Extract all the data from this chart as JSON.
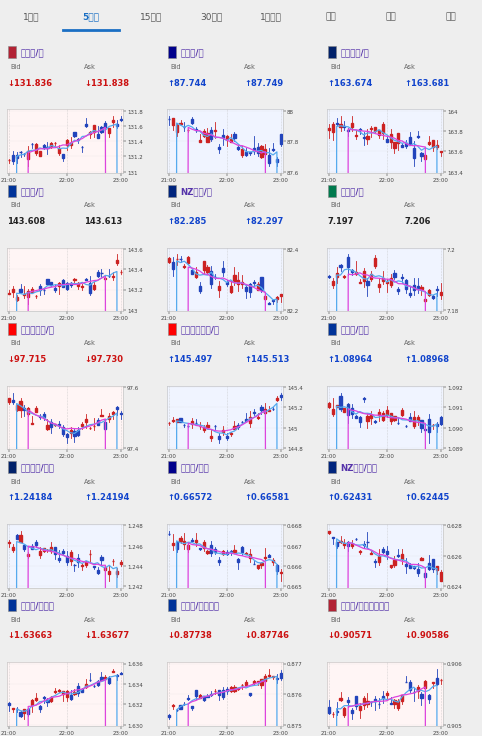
{
  "tab_labels": [
    "1分足",
    "5分足",
    "15分足",
    "30分足",
    "1時間足",
    "日足",
    "週足",
    "月足"
  ],
  "active_tab": 1,
  "tab_active_color": "#1a6fc4",
  "tab_inactive_color": "#555555",
  "pairs": [
    {
      "name": "米ドル/円",
      "flag": "US",
      "bid": "↓131.836",
      "ask": "↓131.838",
      "bid_up": false,
      "ask_up": false,
      "bg": "#fff5f5",
      "border": "#e8c0c0",
      "y_ticks": [
        "131",
        "131.2",
        "131.4",
        "131.6",
        "131.8"
      ],
      "trend": "up_overall"
    },
    {
      "name": "豪ドル/円",
      "flag": "AU",
      "bid": "↑87.744",
      "ask": "↑87.749",
      "bid_up": true,
      "ask_up": true,
      "bg": "#f0f4ff",
      "border": "#c0cce8",
      "y_ticks": [
        "87.6",
        "87.8",
        "88"
      ],
      "trend": "down"
    },
    {
      "name": "英ポンド/円",
      "flag": "GB",
      "bid": "↑163.674",
      "ask": "↑163.681",
      "bid_up": true,
      "ask_up": true,
      "bg": "#f0f4ff",
      "border": "#c0cce8",
      "y_ticks": [
        "163.4",
        "163.6",
        "163.8",
        "164"
      ],
      "trend": "down_mid"
    },
    {
      "name": "ユーロ/円",
      "flag": "EU",
      "bid": "143.608",
      "ask": "143.613",
      "bid_up": null,
      "ask_up": null,
      "bg": "#fff5f5",
      "border": "#e8c0c0",
      "y_ticks": [
        "143",
        "143.2",
        "143.4",
        "143.6"
      ],
      "trend": "up_slight"
    },
    {
      "name": "NZドル/円",
      "flag": "NZ",
      "bid": "↑82.285",
      "ask": "↑82.297",
      "bid_up": true,
      "ask_up": true,
      "bg": "#f0f4ff",
      "border": "#c0cce8",
      "y_ticks": [
        "82.2",
        "82.4"
      ],
      "trend": "down"
    },
    {
      "name": "ランド/円",
      "flag": "ZA",
      "bid": "7.197",
      "ask": "7.206",
      "bid_up": null,
      "ask_up": null,
      "bg": "#f0f4ff",
      "border": "#c0cce8",
      "y_ticks": [
        "7.18",
        "7.2"
      ],
      "trend": "down_slight"
    },
    {
      "name": "カナダドル/円",
      "flag": "CA",
      "bid": "↓97.715",
      "ask": "↓97.730",
      "bid_up": false,
      "ask_up": false,
      "bg": "#fff5f5",
      "border": "#e8c0c0",
      "y_ticks": [
        "97.4",
        "97.6"
      ],
      "trend": "down_v"
    },
    {
      "name": "スイスフラン/円",
      "flag": "CH",
      "bid": "↑145.497",
      "ask": "↑145.513",
      "bid_up": true,
      "ask_up": true,
      "bg": "#f0f4ff",
      "border": "#c0cce8",
      "y_ticks": [
        "144.8",
        "145",
        "145.2",
        "145.4"
      ],
      "trend": "up_v"
    },
    {
      "name": "ユーロ/ドル",
      "flag": "EU",
      "bid": "↑1.08964",
      "ask": "↑1.08968",
      "bid_up": true,
      "ask_up": true,
      "bg": "#f0f4ff",
      "border": "#c0cce8",
      "y_ticks": [
        "1.089",
        "1.090",
        "1.091",
        "1.092"
      ],
      "trend": "down_slight"
    },
    {
      "name": "英ポンド/ドル",
      "flag": "GB",
      "bid": "↑1.24184",
      "ask": "↑1.24194",
      "bid_up": true,
      "ask_up": true,
      "bg": "#f0f4ff",
      "border": "#c0cce8",
      "y_ticks": [
        "1.242",
        "1.244",
        "1.246",
        "1.248"
      ],
      "trend": "down"
    },
    {
      "name": "豪ドル/ドル",
      "flag": "AU",
      "bid": "↑0.66572",
      "ask": "↑0.66581",
      "bid_up": true,
      "ask_up": true,
      "bg": "#f0f4ff",
      "border": "#c0cce8",
      "y_ticks": [
        "0.665",
        "0.666",
        "0.667",
        "0.668"
      ],
      "trend": "down"
    },
    {
      "name": "NZドル/ドル",
      "flag": "NZ",
      "bid": "↑0.62431",
      "ask": "↑0.62445",
      "bid_up": true,
      "ask_up": true,
      "bg": "#f0f4ff",
      "border": "#c0cce8",
      "y_ticks": [
        "0.624",
        "0.626",
        "0.628"
      ],
      "trend": "down"
    },
    {
      "name": "ユーロ/豪ドル",
      "flag": "EU",
      "bid": "↓1.63663",
      "ask": "↓1.63677",
      "bid_up": false,
      "ask_up": false,
      "bg": "#fff5f5",
      "border": "#e8c0c0",
      "y_ticks": [
        "1.630",
        "1.632",
        "1.634",
        "1.636"
      ],
      "trend": "up"
    },
    {
      "name": "ユーロ/英ポンド",
      "flag": "EU",
      "bid": "↓0.87738",
      "ask": "↓0.87746",
      "bid_up": false,
      "ask_up": false,
      "bg": "#fff5f5",
      "border": "#e8c0c0",
      "y_ticks": [
        "0.875",
        "0.876",
        "0.877"
      ],
      "trend": "up"
    },
    {
      "name": "米ドル/スイスフラン",
      "flag": "US",
      "bid": "↓0.90571",
      "ask": "↓0.90586",
      "bid_up": false,
      "ask_up": false,
      "bg": "#fff5f5",
      "border": "#e8c0c0",
      "y_ticks": [
        "0.905",
        "0.906"
      ],
      "trend": "up_slight"
    }
  ]
}
